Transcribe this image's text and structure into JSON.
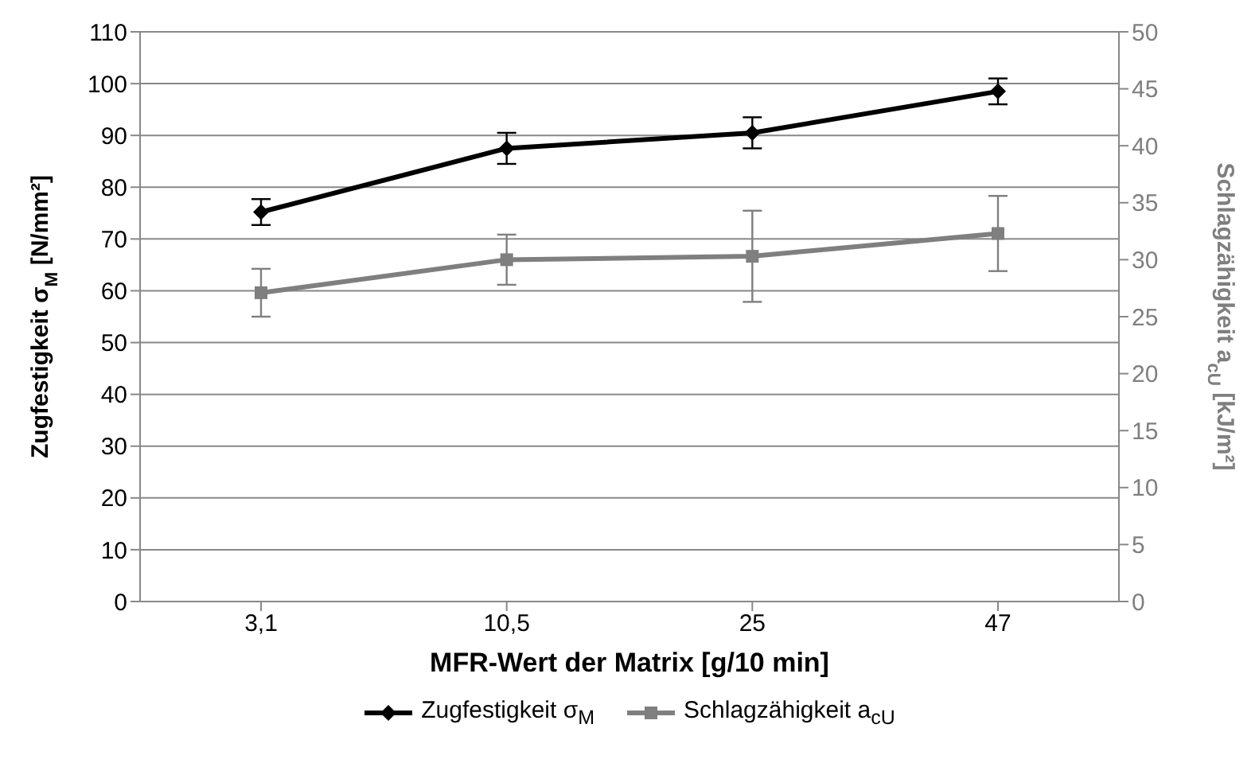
{
  "chart_data": {
    "type": "line",
    "xlabel": "MFR-Wert der Matrix [g/10 min]",
    "ylabel": "Zugfestigkeit σ$_{M}$ [N/mm²]",
    "y2label": "Schlagzähigkeit a$_{cU}$ [kJ/m²]",
    "categories": [
      "3,1",
      "10,5",
      "25",
      "47"
    ],
    "series": [
      {
        "name": "Zugfestigkeit σ$_{M}$",
        "color": "#000000",
        "marker": "diamond",
        "values": [
          75.2,
          87.5,
          90.5,
          98.5
        ],
        "errors": [
          2.5,
          3,
          3,
          2.5
        ]
      },
      {
        "name": "Schlagzähigkeit a$_{cU}$",
        "color": "#7f7f7f",
        "marker": "square",
        "axis": "y2",
        "values": [
          27.1,
          30,
          30.3,
          32.3
        ],
        "errors": [
          2.1,
          2.2,
          4,
          3.3
        ]
      }
    ],
    "ylim": [
      0,
      110
    ],
    "yticks": [
      0,
      10,
      20,
      30,
      40,
      50,
      60,
      70,
      80,
      90,
      100,
      110
    ],
    "y2lim": [
      0,
      50
    ],
    "y2ticks": [
      0,
      5,
      10,
      15,
      20,
      25,
      30,
      35,
      40,
      45,
      50
    ],
    "grid": "y",
    "legend": "bottom",
    "line_style": "solid"
  }
}
